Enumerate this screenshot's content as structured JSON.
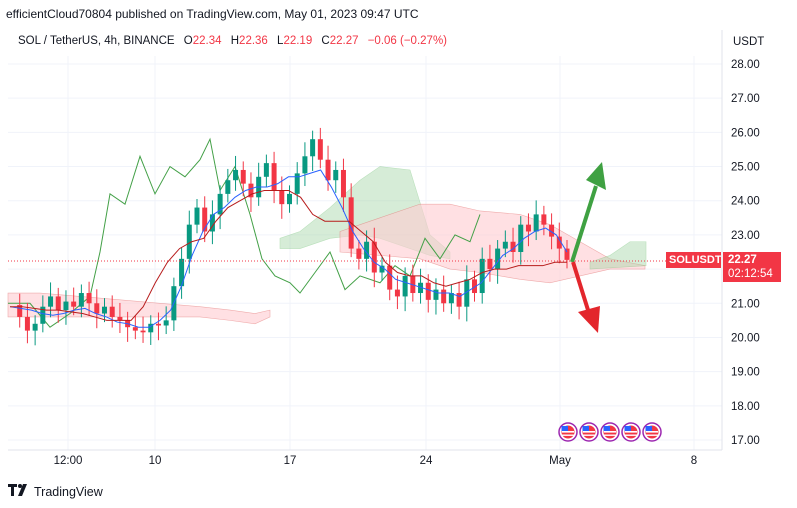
{
  "header": {
    "published": "efficientCloud70804 published on TradingView.com, May 01, 2023 09:47 UTC"
  },
  "legend": {
    "symbol": "SOL / TetherUS, 4h, BINANCE",
    "open_label": "O",
    "open": "22.34",
    "high_label": "H",
    "high": "22.36",
    "low_label": "L",
    "low": "22.19",
    "close_label": "C",
    "close": "22.27",
    "change": "−0.06 (−0.27%)"
  },
  "price_axis": {
    "currency": "USDT"
  },
  "price_tag": {
    "ticker": "SOLUSDT",
    "price": "22.27",
    "countdown": "02:12:54"
  },
  "footer": {
    "brand": "TradingView"
  },
  "colors": {
    "up": "#089981",
    "down": "#f23645",
    "cloud_bull": "#a5d6a7",
    "cloud_bear": "#ffcdd2",
    "tenkan": "#2962ff",
    "kijun": "#b71c1c",
    "chikou": "#43a047",
    "arrow_up": "#3fa142",
    "arrow_down": "#e3262c"
  },
  "icons": [
    "us-flag-event-icon",
    "us-flag-event-icon",
    "us-flag-event-icon",
    "us-flag-event-icon",
    "us-flag-event-icon"
  ],
  "chart_data": {
    "type": "candlestick",
    "title": "SOL / TetherUS, 4h, BINANCE",
    "ylabel": "USDT",
    "ylim": [
      16.7,
      28.7
    ],
    "y_ticks": [
      "28.00",
      "27.00",
      "26.00",
      "25.00",
      "24.00",
      "23.00",
      "22.00",
      "21.00",
      "20.00",
      "19.00",
      "18.00",
      "17.00"
    ],
    "x_ticks": [
      "12:00",
      "10",
      "17",
      "24",
      "May",
      "8"
    ],
    "last_price": 22.27,
    "close_path": [
      20.95,
      20.6,
      20.2,
      20.4,
      20.9,
      21.2,
      20.8,
      21.05,
      20.9,
      21.3,
      21.0,
      20.7,
      20.9,
      20.6,
      20.5,
      20.3,
      20.2,
      20.15,
      20.4,
      20.35,
      20.5,
      21.5,
      22.3,
      23.3,
      23.8,
      23.1,
      23.6,
      24.2,
      24.6,
      24.9,
      24.5,
      24.1,
      24.7,
      25.1,
      24.3,
      23.9,
      24.2,
      24.8,
      25.3,
      25.8,
      25.2,
      24.6,
      24.9,
      24.1,
      22.6,
      22.3,
      22.8,
      21.9,
      22.1,
      21.4,
      21.2,
      21.8,
      21.3,
      21.6,
      21.1,
      21.4,
      21.0,
      21.3,
      20.9,
      21.7,
      21.3,
      22.3,
      22.0,
      22.6,
      22.8,
      22.5,
      23.3,
      23.1,
      23.6,
      23.3,
      22.95,
      22.6,
      22.27
    ],
    "ichimoku_tenkan": [
      20.9,
      20.85,
      20.8,
      20.7,
      20.65,
      20.7,
      20.8,
      20.85,
      20.7,
      20.6,
      20.45,
      20.4,
      20.3,
      20.3,
      20.5,
      20.8,
      21.5,
      22.4,
      23.1,
      23.6,
      23.8,
      24.1,
      24.3,
      24.4,
      24.4,
      24.5,
      24.7,
      24.7,
      24.8,
      24.9,
      24.4,
      23.8,
      23.1,
      22.6,
      22.2,
      22.0,
      21.7,
      21.6,
      21.5,
      21.4,
      21.3,
      21.3,
      21.2,
      21.4,
      21.6,
      22.0,
      22.4,
      22.6,
      22.9,
      23.1,
      23.2,
      23.0,
      22.5
    ],
    "ichimoku_kijun": [
      20.9,
      20.9,
      20.85,
      20.8,
      20.8,
      20.75,
      20.7,
      20.6,
      20.5,
      20.5,
      20.5,
      20.9,
      21.6,
      22.2,
      22.6,
      22.8,
      22.9,
      23.4,
      23.8,
      24.0,
      24.2,
      24.3,
      24.3,
      24.3,
      24.1,
      23.6,
      23.4,
      23.4,
      23.4,
      23.1,
      22.8,
      22.2,
      21.9,
      21.8,
      21.8,
      21.6,
      21.5,
      21.6,
      21.7,
      21.9,
      22.0,
      22.0,
      22.1,
      22.1,
      22.1,
      22.2,
      22.2
    ]
  }
}
